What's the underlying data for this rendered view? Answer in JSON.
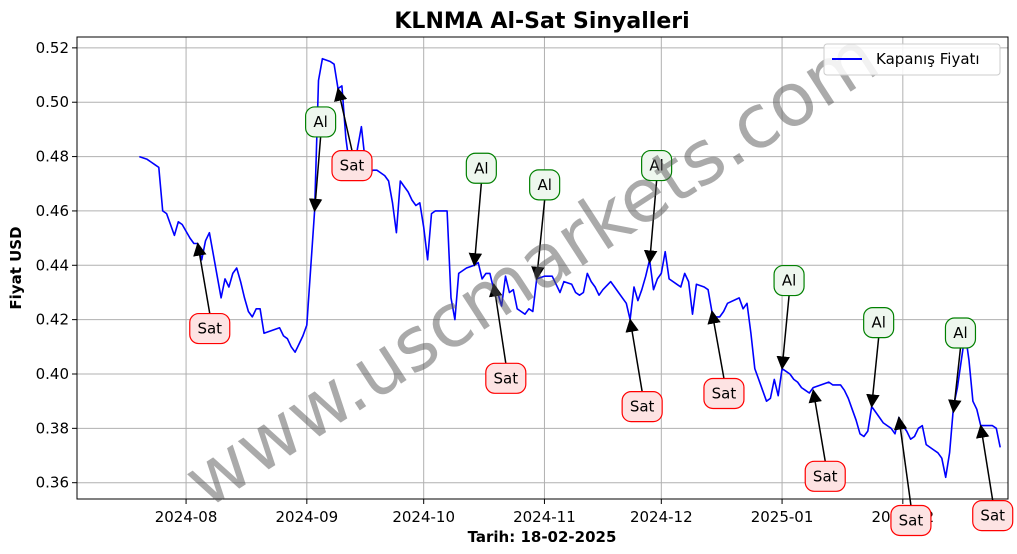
{
  "chart_data": {
    "type": "line",
    "title": "KLNMA Al-Sat Sinyalleri",
    "xlabel": "Tarih: 18-02-2025",
    "ylabel": "Fiyat USD",
    "x_tick_labels": [
      "2024-08",
      "2024-09",
      "2024-10",
      "2024-11",
      "2024-12",
      "2025-01",
      "2025-02"
    ],
    "y_ticks": [
      0.36,
      0.38,
      0.4,
      0.42,
      0.44,
      0.46,
      0.48,
      0.5,
      0.52
    ],
    "y_tick_labels": [
      "0.36",
      "0.38",
      "0.40",
      "0.42",
      "0.44",
      "0.46",
      "0.48",
      "0.50",
      "0.52"
    ],
    "xlim": [
      "2024-07-04",
      "2025-02-28"
    ],
    "ylim": [
      0.354,
      0.524
    ],
    "grid": true,
    "legend_position": "top-right",
    "series": [
      {
        "name": "Kapanış Fiyatı",
        "color": "#0000ff",
        "points": [
          [
            "2024-07-20",
            0.48
          ],
          [
            "2024-07-22",
            0.479
          ],
          [
            "2024-07-23",
            0.478
          ],
          [
            "2024-07-24",
            0.477
          ],
          [
            "2024-07-25",
            0.476
          ],
          [
            "2024-07-26",
            0.46
          ],
          [
            "2024-07-27",
            0.459
          ],
          [
            "2024-07-28",
            0.455
          ],
          [
            "2024-07-29",
            0.451
          ],
          [
            "2024-07-30",
            0.456
          ],
          [
            "2024-07-31",
            0.455
          ],
          [
            "2024-08-02",
            0.45
          ],
          [
            "2024-08-03",
            0.448
          ],
          [
            "2024-08-04",
            0.448
          ],
          [
            "2024-08-05",
            0.442
          ],
          [
            "2024-08-06",
            0.449
          ],
          [
            "2024-08-07",
            0.452
          ],
          [
            "2024-08-08",
            0.444
          ],
          [
            "2024-08-09",
            0.436
          ],
          [
            "2024-08-10",
            0.428
          ],
          [
            "2024-08-11",
            0.435
          ],
          [
            "2024-08-12",
            0.432
          ],
          [
            "2024-08-13",
            0.437
          ],
          [
            "2024-08-14",
            0.439
          ],
          [
            "2024-08-15",
            0.434
          ],
          [
            "2024-08-16",
            0.428
          ],
          [
            "2024-08-17",
            0.423
          ],
          [
            "2024-08-18",
            0.421
          ],
          [
            "2024-08-19",
            0.424
          ],
          [
            "2024-08-20",
            0.424
          ],
          [
            "2024-08-21",
            0.415
          ],
          [
            "2024-08-23",
            0.416
          ],
          [
            "2024-08-25",
            0.417
          ],
          [
            "2024-08-26",
            0.414
          ],
          [
            "2024-08-27",
            0.413
          ],
          [
            "2024-08-28",
            0.41
          ],
          [
            "2024-08-29",
            0.408
          ],
          [
            "2024-08-30",
            0.411
          ],
          [
            "2024-08-31",
            0.414
          ],
          [
            "2024-09-01",
            0.418
          ],
          [
            "2024-09-03",
            0.46
          ],
          [
            "2024-09-04",
            0.508
          ],
          [
            "2024-09-05",
            0.516
          ],
          [
            "2024-09-07",
            0.515
          ],
          [
            "2024-09-08",
            0.514
          ],
          [
            "2024-09-09",
            0.505
          ],
          [
            "2024-09-10",
            0.506
          ],
          [
            "2024-09-11",
            0.487
          ],
          [
            "2024-09-12",
            0.476
          ],
          [
            "2024-09-13",
            0.474
          ],
          [
            "2024-09-14",
            0.483
          ],
          [
            "2024-09-15",
            0.491
          ],
          [
            "2024-09-16",
            0.478
          ],
          [
            "2024-09-17",
            0.474
          ],
          [
            "2024-09-18",
            0.475
          ],
          [
            "2024-09-19",
            0.475
          ],
          [
            "2024-09-20",
            0.474
          ],
          [
            "2024-09-21",
            0.473
          ],
          [
            "2024-09-22",
            0.471
          ],
          [
            "2024-09-23",
            0.463
          ],
          [
            "2024-09-24",
            0.452
          ],
          [
            "2024-09-25",
            0.471
          ],
          [
            "2024-09-26",
            0.469
          ],
          [
            "2024-09-27",
            0.467
          ],
          [
            "2024-09-28",
            0.464
          ],
          [
            "2024-09-29",
            0.462
          ],
          [
            "2024-09-30",
            0.463
          ],
          [
            "2024-10-01",
            0.454
          ],
          [
            "2024-10-02",
            0.442
          ],
          [
            "2024-10-03",
            0.459
          ],
          [
            "2024-10-04",
            0.46
          ],
          [
            "2024-10-07",
            0.46
          ],
          [
            "2024-10-08",
            0.428
          ],
          [
            "2024-10-09",
            0.42
          ],
          [
            "2024-10-10",
            0.437
          ],
          [
            "2024-10-12",
            0.439
          ],
          [
            "2024-10-14",
            0.44
          ],
          [
            "2024-10-15",
            0.441
          ],
          [
            "2024-10-16",
            0.435
          ],
          [
            "2024-10-17",
            0.437
          ],
          [
            "2024-10-18",
            0.437
          ],
          [
            "2024-10-19",
            0.431
          ],
          [
            "2024-10-20",
            0.43
          ],
          [
            "2024-10-21",
            0.425
          ],
          [
            "2024-10-22",
            0.436
          ],
          [
            "2024-10-23",
            0.43
          ],
          [
            "2024-10-24",
            0.431
          ],
          [
            "2024-10-25",
            0.424
          ],
          [
            "2024-10-26",
            0.423
          ],
          [
            "2024-10-27",
            0.422
          ],
          [
            "2024-10-28",
            0.424
          ],
          [
            "2024-10-29",
            0.423
          ],
          [
            "2024-10-30",
            0.435
          ],
          [
            "2024-11-01",
            0.436
          ],
          [
            "2024-11-03",
            0.436
          ],
          [
            "2024-11-04",
            0.433
          ],
          [
            "2024-11-05",
            0.43
          ],
          [
            "2024-11-06",
            0.434
          ],
          [
            "2024-11-08",
            0.433
          ],
          [
            "2024-11-09",
            0.43
          ],
          [
            "2024-11-10",
            0.429
          ],
          [
            "2024-11-11",
            0.43
          ],
          [
            "2024-11-12",
            0.437
          ],
          [
            "2024-11-13",
            0.434
          ],
          [
            "2024-11-14",
            0.432
          ],
          [
            "2024-11-15",
            0.429
          ],
          [
            "2024-11-16",
            0.431
          ],
          [
            "2024-11-18",
            0.434
          ],
          [
            "2024-11-19",
            0.432
          ],
          [
            "2024-11-20",
            0.43
          ],
          [
            "2024-11-22",
            0.426
          ],
          [
            "2024-11-23",
            0.42
          ],
          [
            "2024-11-24",
            0.432
          ],
          [
            "2024-11-25",
            0.427
          ],
          [
            "2024-11-26",
            0.431
          ],
          [
            "2024-11-27",
            0.436
          ],
          [
            "2024-11-28",
            0.442
          ],
          [
            "2024-11-29",
            0.431
          ],
          [
            "2024-11-30",
            0.435
          ],
          [
            "2024-12-01",
            0.437
          ],
          [
            "2024-12-02",
            0.445
          ],
          [
            "2024-12-03",
            0.435
          ],
          [
            "2024-12-05",
            0.433
          ],
          [
            "2024-12-06",
            0.432
          ],
          [
            "2024-12-07",
            0.437
          ],
          [
            "2024-12-08",
            0.434
          ],
          [
            "2024-12-09",
            0.422
          ],
          [
            "2024-12-10",
            0.433
          ],
          [
            "2024-12-12",
            0.432
          ],
          [
            "2024-12-13",
            0.431
          ],
          [
            "2024-12-14",
            0.423
          ],
          [
            "2024-12-15",
            0.421
          ],
          [
            "2024-12-16",
            0.421
          ],
          [
            "2024-12-17",
            0.423
          ],
          [
            "2024-12-18",
            0.426
          ],
          [
            "2024-12-21",
            0.428
          ],
          [
            "2024-12-22",
            0.424
          ],
          [
            "2024-12-23",
            0.426
          ],
          [
            "2024-12-24",
            0.415
          ],
          [
            "2024-12-25",
            0.402
          ],
          [
            "2024-12-26",
            0.398
          ],
          [
            "2024-12-27",
            0.394
          ],
          [
            "2024-12-28",
            0.39
          ],
          [
            "2024-12-29",
            0.391
          ],
          [
            "2024-12-30",
            0.398
          ],
          [
            "2024-12-31",
            0.392
          ],
          [
            "2025-01-01",
            0.402
          ],
          [
            "2025-01-02",
            0.401
          ],
          [
            "2025-01-03",
            0.4
          ],
          [
            "2025-01-04",
            0.398
          ],
          [
            "2025-01-05",
            0.397
          ],
          [
            "2025-01-06",
            0.395
          ],
          [
            "2025-01-07",
            0.394
          ],
          [
            "2025-01-08",
            0.393
          ],
          [
            "2025-01-09",
            0.395
          ],
          [
            "2025-01-11",
            0.396
          ],
          [
            "2025-01-13",
            0.397
          ],
          [
            "2025-01-14",
            0.396
          ],
          [
            "2025-01-16",
            0.396
          ],
          [
            "2025-01-17",
            0.394
          ],
          [
            "2025-01-18",
            0.391
          ],
          [
            "2025-01-19",
            0.387
          ],
          [
            "2025-01-20",
            0.383
          ],
          [
            "2025-01-21",
            0.378
          ],
          [
            "2025-01-22",
            0.377
          ],
          [
            "2025-01-23",
            0.379
          ],
          [
            "2025-01-24",
            0.388
          ],
          [
            "2025-01-25",
            0.386
          ],
          [
            "2025-01-26",
            0.384
          ],
          [
            "2025-01-27",
            0.382
          ],
          [
            "2025-01-28",
            0.381
          ],
          [
            "2025-01-29",
            0.38
          ],
          [
            "2025-01-30",
            0.378
          ],
          [
            "2025-01-31",
            0.384
          ],
          [
            "2025-02-01",
            0.381
          ],
          [
            "2025-02-02",
            0.379
          ],
          [
            "2025-02-03",
            0.376
          ],
          [
            "2025-02-04",
            0.377
          ],
          [
            "2025-02-05",
            0.38
          ],
          [
            "2025-02-06",
            0.381
          ],
          [
            "2025-02-07",
            0.374
          ],
          [
            "2025-02-09",
            0.372
          ],
          [
            "2025-02-10",
            0.371
          ],
          [
            "2025-02-11",
            0.369
          ],
          [
            "2025-02-12",
            0.362
          ],
          [
            "2025-02-13",
            0.371
          ],
          [
            "2025-02-14",
            0.388
          ],
          [
            "2025-02-15",
            0.395
          ],
          [
            "2025-02-16",
            0.405
          ],
          [
            "2025-02-17",
            0.415
          ],
          [
            "2025-02-18",
            0.405
          ],
          [
            "2025-02-19",
            0.39
          ],
          [
            "2025-02-20",
            0.387
          ],
          [
            "2025-02-21",
            0.381
          ],
          [
            "2025-02-24",
            0.381
          ],
          [
            "2025-02-25",
            0.38
          ],
          [
            "2025-02-26",
            0.373
          ]
        ]
      }
    ],
    "annotations": [
      {
        "text": "Sat",
        "kind": "sell",
        "target": [
          "2024-08-04",
          0.448
        ]
      },
      {
        "text": "Al",
        "kind": "buy",
        "target": [
          "2024-09-03",
          0.46
        ]
      },
      {
        "text": "Sat",
        "kind": "sell",
        "target": [
          "2024-09-09",
          0.505
        ]
      },
      {
        "text": "Al",
        "kind": "buy",
        "target": [
          "2024-10-14",
          0.44
        ]
      },
      {
        "text": "Sat",
        "kind": "sell",
        "target": [
          "2024-10-19",
          0.433
        ]
      },
      {
        "text": "Al",
        "kind": "buy",
        "target": [
          "2024-10-30",
          0.435
        ]
      },
      {
        "text": "Sat",
        "kind": "sell",
        "target": [
          "2024-11-23",
          0.42
        ]
      },
      {
        "text": "Al",
        "kind": "buy",
        "target": [
          "2024-11-28",
          0.441
        ]
      },
      {
        "text": "Sat",
        "kind": "sell",
        "target": [
          "2024-12-14",
          0.423
        ]
      },
      {
        "text": "Al",
        "kind": "buy",
        "target": [
          "2025-01-01",
          0.402
        ]
      },
      {
        "text": "Sat",
        "kind": "sell",
        "target": [
          "2025-01-09",
          0.394
        ]
      },
      {
        "text": "Al",
        "kind": "buy",
        "target": [
          "2025-01-24",
          0.388
        ]
      },
      {
        "text": "Sat",
        "kind": "sell",
        "target": [
          "2025-01-31",
          0.384
        ]
      },
      {
        "text": "Al",
        "kind": "buy",
        "target": [
          "2025-02-14",
          0.386
        ]
      },
      {
        "text": "Sat",
        "kind": "sell",
        "target": [
          "2025-02-21",
          0.381
        ]
      }
    ],
    "colors": {
      "line": "#0000ff",
      "buy_edge": "#008000",
      "buy_fill": "#eef7ee",
      "sell_edge": "#ff0000",
      "sell_fill": "#fde3e3",
      "grid": "#b0b0b0"
    }
  },
  "watermark": "www.uscmarkets.com"
}
